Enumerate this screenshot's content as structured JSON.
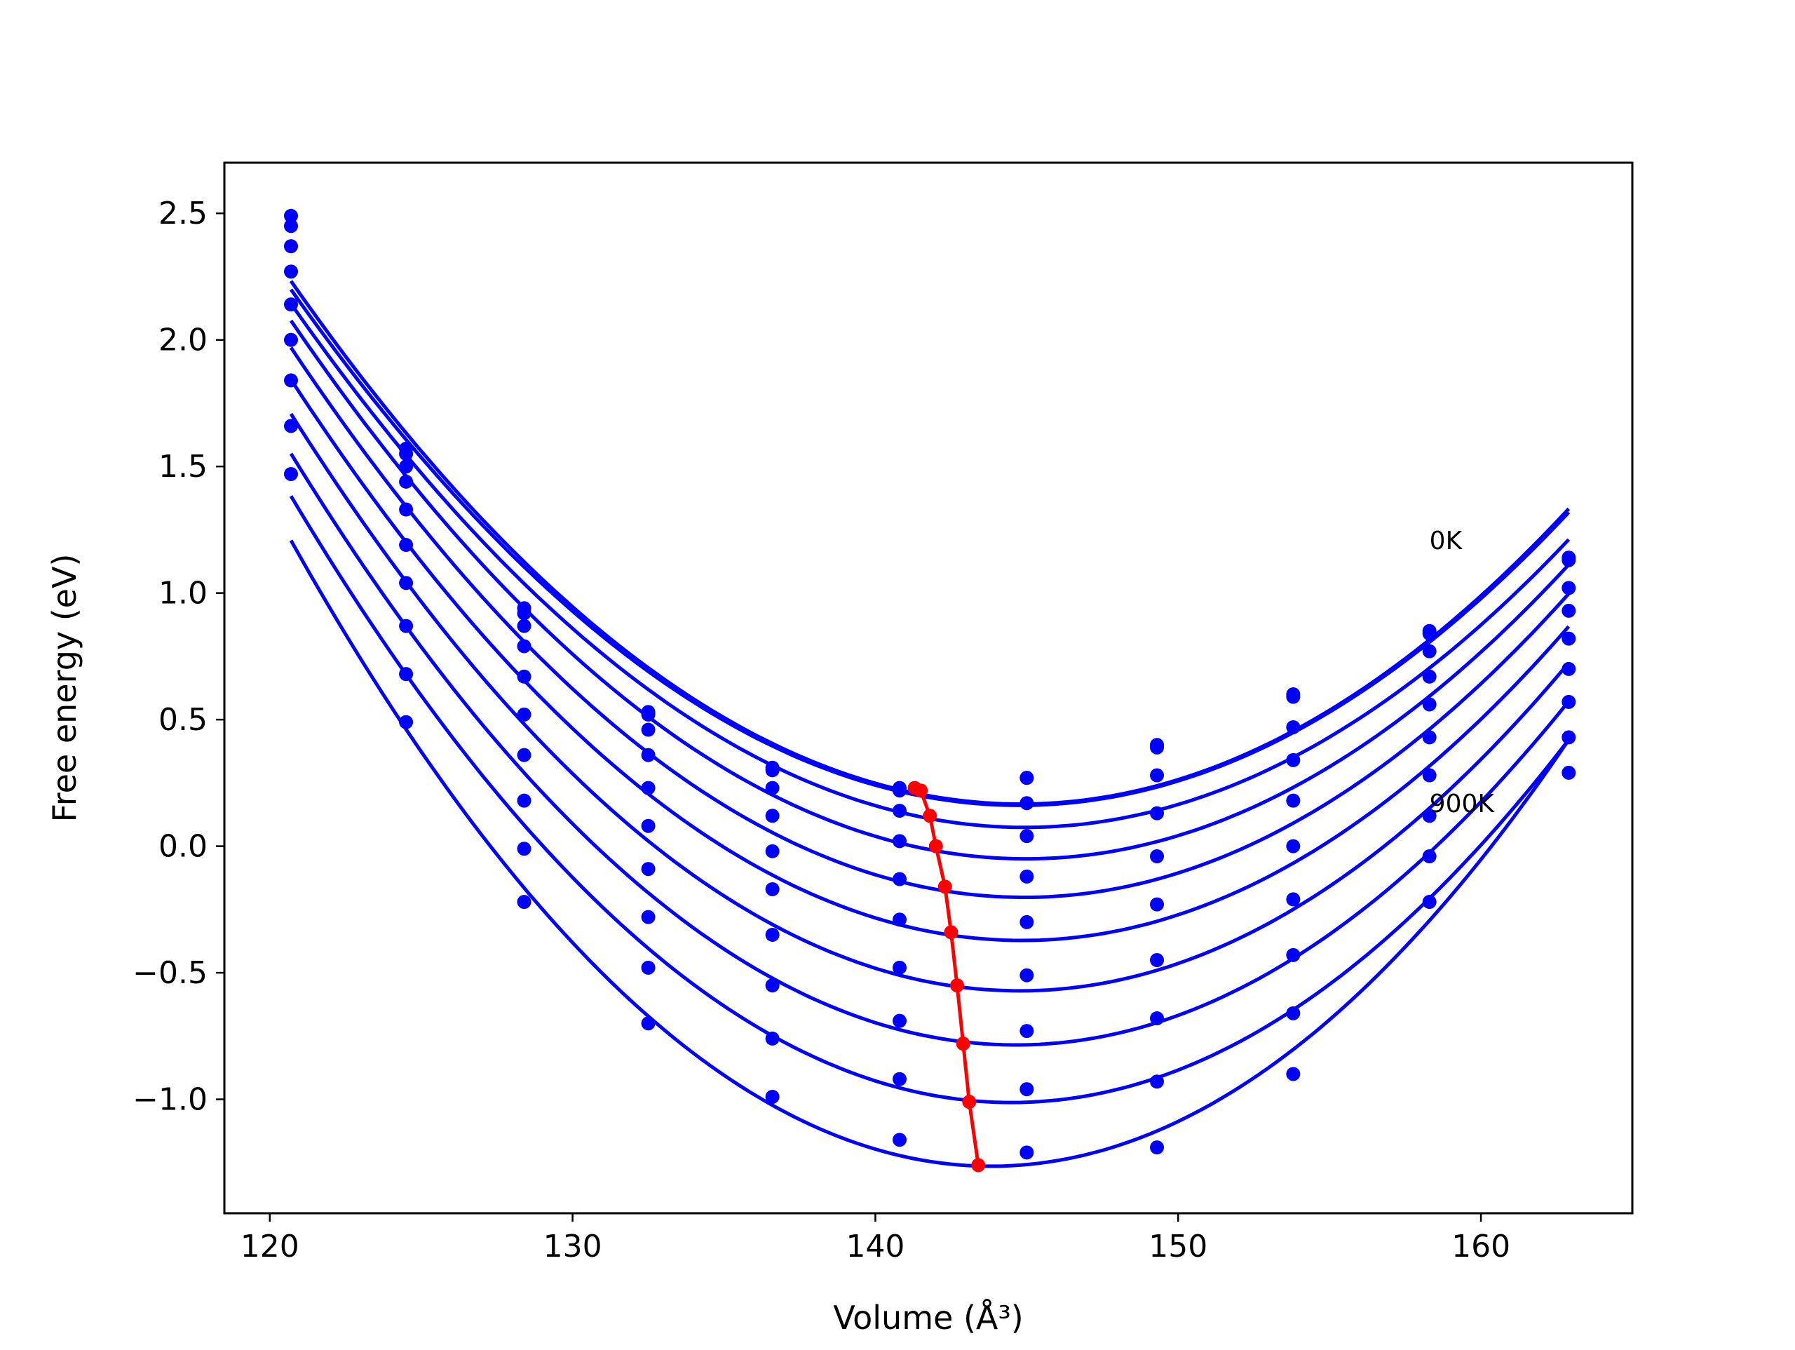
{
  "chart_data": {
    "type": "line",
    "title": "",
    "xlabel": "Volume (Å³)",
    "ylabel": "Free energy (eV)",
    "xlim": [
      118.5,
      165.0
    ],
    "ylim": [
      -1.45,
      2.7
    ],
    "x_ticks": [
      120,
      130,
      140,
      150,
      160
    ],
    "x_tick_labels": [
      "120",
      "130",
      "140",
      "150",
      "160"
    ],
    "y_ticks": [
      -1.0,
      -0.5,
      0.0,
      0.5,
      1.0,
      1.5,
      2.0,
      2.5
    ],
    "y_tick_labels": [
      "−1.0",
      "−0.5",
      "0.0",
      "0.5",
      "1.0",
      "1.5",
      "2.0",
      "2.5"
    ],
    "grid": false,
    "annotations": [
      {
        "text": "0K",
        "x": 158.3,
        "y": 1.21
      },
      {
        "text": "900K",
        "x": 158.3,
        "y": 0.17
      }
    ],
    "colors": {
      "curves": "#0000ff",
      "minimum_path": "#ff0000",
      "axes": "#000000"
    },
    "volumes": [
      120.7,
      124.5,
      128.4,
      132.5,
      136.6,
      140.8,
      145.0,
      149.3,
      153.8,
      158.3,
      162.9
    ],
    "series": [
      {
        "values": [
          2.49,
          1.57,
          0.94,
          0.53,
          0.31,
          0.23,
          0.27,
          0.4,
          0.6,
          0.85,
          1.14
        ]
      },
      {
        "values": [
          2.45,
          1.55,
          0.92,
          0.52,
          0.3,
          0.22,
          0.27,
          0.39,
          0.59,
          0.84,
          1.13
        ]
      },
      {
        "values": [
          2.37,
          1.5,
          0.87,
          0.46,
          0.23,
          0.14,
          0.17,
          0.28,
          0.47,
          0.77,
          1.02
        ]
      },
      {
        "values": [
          2.27,
          1.44,
          0.79,
          0.36,
          0.12,
          0.02,
          0.04,
          0.13,
          0.34,
          0.67,
          0.93
        ]
      },
      {
        "values": [
          2.14,
          1.33,
          0.67,
          0.23,
          -0.02,
          -0.13,
          -0.12,
          -0.04,
          0.18,
          0.56,
          0.82
        ]
      },
      {
        "values": [
          2.0,
          1.19,
          0.52,
          0.08,
          -0.17,
          -0.29,
          -0.3,
          -0.23,
          0.0,
          0.43,
          0.7
        ]
      },
      {
        "values": [
          1.84,
          1.04,
          0.36,
          -0.09,
          -0.35,
          -0.48,
          -0.51,
          -0.45,
          -0.21,
          0.28,
          0.57
        ]
      },
      {
        "values": [
          1.66,
          0.87,
          0.18,
          -0.28,
          -0.55,
          -0.69,
          -0.73,
          -0.68,
          -0.43,
          0.12,
          0.43
        ]
      },
      {
        "values": [
          1.47,
          0.68,
          -0.01,
          -0.48,
          -0.76,
          -0.92,
          -0.96,
          -0.93,
          -0.66,
          -0.04,
          0.29
        ]
      },
      {
        "values": [
          null,
          0.49,
          -0.22,
          -0.7,
          -0.99,
          -1.16,
          -1.21,
          -1.19,
          -0.9,
          -0.22,
          null
        ]
      }
    ],
    "fit_minima": {
      "x": [
        141.3,
        141.5,
        141.8,
        142.0,
        142.3,
        142.5,
        142.7,
        142.9,
        143.1,
        143.4
      ],
      "y": [
        0.23,
        0.22,
        0.12,
        0.0,
        -0.16,
        -0.34,
        -0.55,
        -0.78,
        -1.01,
        -1.26
      ]
    }
  }
}
